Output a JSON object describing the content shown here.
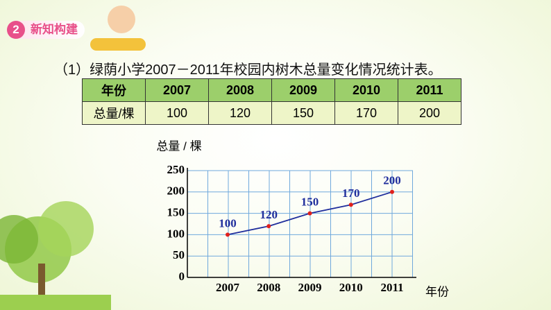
{
  "header": {
    "badge": "2",
    "title": "新知构建"
  },
  "caption": "（1）绿荫小学2007－2011年校园内树木总量变化情况统计表。",
  "table": {
    "header": [
      "年份",
      "2007",
      "2008",
      "2009",
      "2010",
      "2011"
    ],
    "rows": [
      [
        "总量/棵",
        100,
        120,
        150,
        170,
        200
      ]
    ]
  },
  "chart_data": {
    "type": "line",
    "y_label": "总量 / 棵",
    "x_label": "年份",
    "categories": [
      "2007",
      "2008",
      "2009",
      "2010",
      "2011"
    ],
    "series": [
      {
        "color": "#1f2d9c",
        "values": [
          100,
          120,
          150,
          170,
          200
        ]
      }
    ],
    "ylim": [
      0,
      250
    ],
    "yticks": [
      0,
      50,
      100,
      150,
      200,
      250
    ],
    "grid": true
  }
}
